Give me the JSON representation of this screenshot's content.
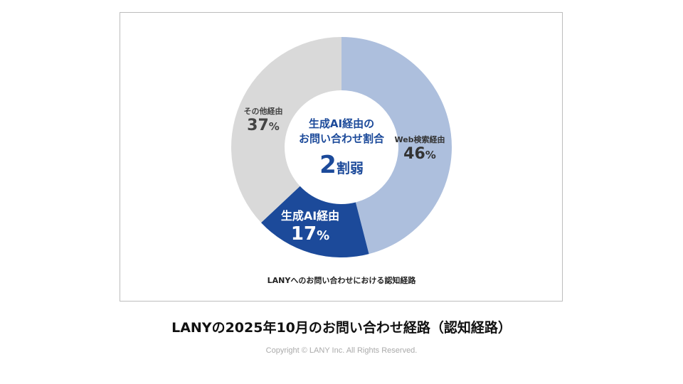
{
  "chart_data": {
    "type": "pie",
    "subtype": "donut",
    "caption": "LANYへのお問い合わせにおける認知経路",
    "center_text": {
      "line1": "生成AI経由の",
      "line2": "お問い合わせ割合",
      "big_num": "2",
      "big_suffix": "割弱"
    },
    "slices": [
      {
        "name": "Web検索経由",
        "value": 46,
        "label": "46",
        "color": "#adbfdd",
        "text_color": "#333333"
      },
      {
        "name": "生成AI経由",
        "value": 17,
        "label": "17",
        "color": "#1c4a9a",
        "text_color": "#ffffff"
      },
      {
        "name": "その他経由",
        "value": 37,
        "label": "37",
        "color": "#d9d9d9",
        "text_color": "#444444"
      }
    ],
    "unit": "%"
  },
  "title": "LANYの2025年10月のお問い合わせ経路（認知経路）",
  "copyright": "Copyright © LANY Inc. All Rights Reserved."
}
